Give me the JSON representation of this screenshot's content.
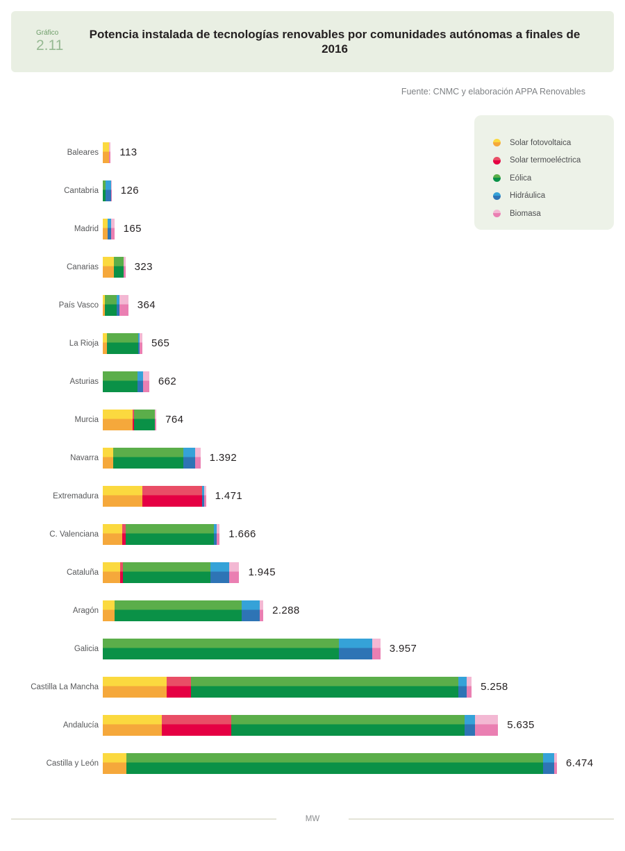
{
  "header": {
    "kicker": "Gráfico",
    "number": "2.11",
    "title": "Potencia instalada de tecnologías renovables por comunidades autónomas a finales de 2016"
  },
  "source": "Fuente: CNMC y elaboración APPA Renovables",
  "footer": {
    "axis_unit": "MW"
  },
  "chart_data": {
    "type": "bar",
    "orientation": "horizontal",
    "unit": "MW",
    "xlim": [
      0,
      6474
    ],
    "grid": false,
    "legend_position": "top-right",
    "categories": [
      "Baleares",
      "Cantabria",
      "Madrid",
      "Canarias",
      "País Vasco",
      "La Rioja",
      "Asturias",
      "Murcia",
      "Navarra",
      "Extremadura",
      "C. Valenciana",
      "Cataluña",
      "Aragón",
      "Galicia",
      "Castilla La Mancha",
      "Andalucía",
      "Castilla y León"
    ],
    "totals": [
      113,
      126,
      165,
      323,
      364,
      565,
      662,
      764,
      1392,
      1471,
      1666,
      1945,
      2288,
      3957,
      5258,
      5635,
      6474
    ],
    "totals_formatted": [
      "113",
      "126",
      "165",
      "323",
      "364",
      "565",
      "662",
      "764",
      "1.392",
      "1.471",
      "1.666",
      "1.945",
      "2.288",
      "3.957",
      "5.258",
      "5.635",
      "6.474"
    ],
    "series": [
      {
        "name": "Solar fotovoltaica",
        "color_top": "#fbd93f",
        "color_bottom": "#f5a83b",
        "values": [
          85,
          0,
          66,
          155,
          25,
          60,
          0,
          430,
          150,
          560,
          280,
          250,
          170,
          0,
          910,
          845,
          340
        ]
      },
      {
        "name": "Solar termoeléctrica",
        "color_top": "#e94e66",
        "color_bottom": "#e50043",
        "values": [
          0,
          0,
          0,
          0,
          0,
          0,
          0,
          15,
          0,
          860,
          50,
          40,
          0,
          0,
          350,
          990,
          0
        ]
      },
      {
        "name": "Eólica",
        "color_top": "#5bae4a",
        "color_bottom": "#0a9147",
        "values": [
          4,
          35,
          0,
          140,
          175,
          445,
          494,
          295,
          1000,
          0,
          1255,
          1240,
          1810,
          3368,
          3810,
          3320,
          5935
        ]
      },
      {
        "name": "Hidráulica",
        "color_top": "#35a2d8",
        "color_bottom": "#2e74b5",
        "values": [
          0,
          81,
          50,
          0,
          35,
          20,
          79,
          4,
          165,
          21,
          40,
          275,
          258,
          470,
          120,
          150,
          160
        ]
      },
      {
        "name": "Biomasa",
        "color_top": "#f3b8d3",
        "color_bottom": "#ea7fb2",
        "values": [
          24,
          10,
          49,
          28,
          129,
          40,
          89,
          20,
          77,
          30,
          41,
          140,
          50,
          119,
          68,
          330,
          39
        ]
      }
    ]
  }
}
